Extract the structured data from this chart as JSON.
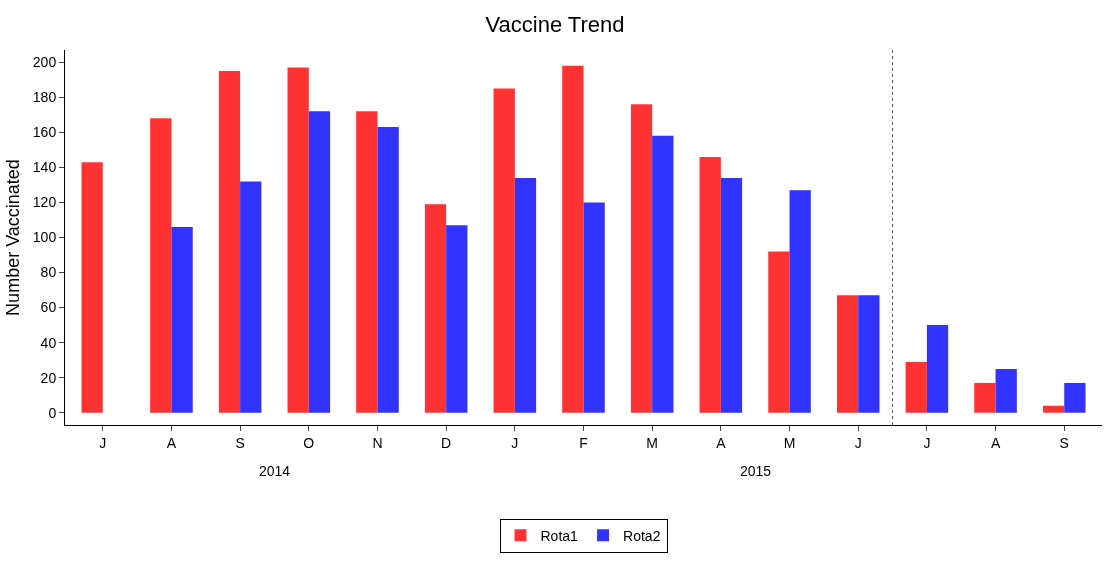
{
  "chart_data": {
    "type": "bar",
    "title": "Vaccine Trend",
    "ylabel": "Number Vaccinated",
    "categories": [
      "J",
      "A",
      "S",
      "O",
      "N",
      "D",
      "J",
      "F",
      "M",
      "A",
      "M",
      "J",
      "J",
      "A",
      "S"
    ],
    "series": [
      {
        "name": "Rota1",
        "color": "#ff3333",
        "values": [
          143,
          168,
          195,
          197,
          172,
          119,
          185,
          198,
          176,
          146,
          92,
          67,
          29,
          17,
          4
        ]
      },
      {
        "name": "Rota2",
        "color": "#3333ff",
        "values": [
          null,
          106,
          132,
          172,
          163,
          107,
          134,
          120,
          158,
          134,
          127,
          67,
          50,
          25,
          17
        ]
      }
    ],
    "ylim": [
      -7,
      207
    ],
    "yticks": [
      0,
      20,
      40,
      60,
      80,
      100,
      120,
      140,
      160,
      180,
      200
    ],
    "annotations": [
      "2014",
      "2015"
    ],
    "grid": false,
    "legend": "bottom"
  }
}
